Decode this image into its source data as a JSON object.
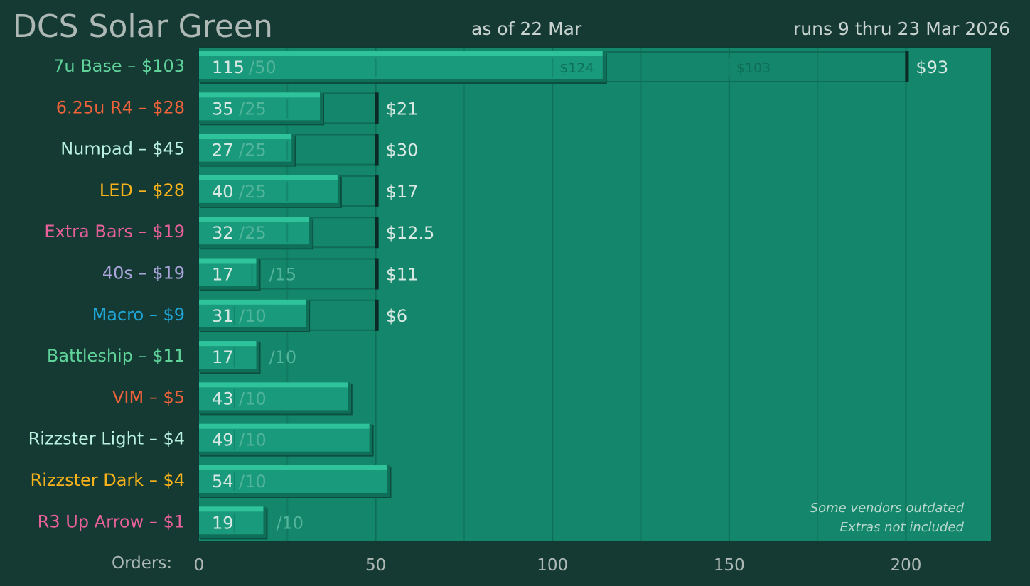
{
  "header": {
    "title": "DCS Solar Green",
    "as_of": "as of 22 Mar",
    "runs": "runs 9 thru 23 Mar 2026"
  },
  "notes": {
    "line1": "Some vendors outdated",
    "line2": "Extras not included"
  },
  "axis": {
    "label": "Orders:"
  },
  "chart_data": {
    "type": "bar",
    "orientation": "horizontal",
    "xlabel": "Orders:",
    "xlim": [
      0,
      225
    ],
    "xticks": [
      0,
      50,
      100,
      150,
      200
    ],
    "grid": true,
    "colors": {
      "bar": "#1a9a7c",
      "bar_top": "#2fc39c",
      "plot_bg": "#13866b",
      "page_bg": "#143a33"
    },
    "categories": [
      "7u Base – $103",
      "6.25u R4 – $28",
      "Numpad – $45",
      "LED – $28",
      "Extra Bars – $19",
      "40s – $19",
      "Macro – $9",
      "Battleship – $11",
      "VIM – $5",
      "Rizzster Light – $4",
      "Rizzster Dark – $4",
      "R3 Up Arrow – $1"
    ],
    "label_colors": [
      "#5fd39a",
      "#f0623a",
      "#b9f0e0",
      "#f7b21b",
      "#e8609a",
      "#a9a4d9",
      "#21a6d8",
      "#5fd39a",
      "#f0623a",
      "#b9f0e0",
      "#f7b21b",
      "#e8609a"
    ],
    "values": [
      115,
      35,
      27,
      40,
      32,
      17,
      31,
      17,
      43,
      49,
      54,
      19
    ],
    "value_labels": [
      "115",
      "35",
      "27",
      "40",
      "32",
      "17",
      "31",
      "17",
      "43",
      "49",
      "54",
      "19"
    ],
    "moq": [
      50,
      25,
      25,
      25,
      25,
      15,
      10,
      10,
      10,
      10,
      10,
      10
    ],
    "moq_labels": [
      "/50",
      "/25",
      "/25",
      "/25",
      "/25",
      "/15",
      "/10",
      "/10",
      "/10",
      "/10",
      "/10",
      "/10"
    ],
    "target": [
      200,
      50,
      50,
      50,
      50,
      50,
      50,
      null,
      null,
      null,
      null,
      null
    ],
    "target_labels": [
      "$93",
      "$21",
      "$30",
      "$17",
      "$12.5",
      "$11",
      "$6",
      "",
      "",
      "",
      "",
      ""
    ],
    "tier_markers": [
      [
        {
          "x": 100,
          "label": "$124"
        },
        {
          "x": 150,
          "label": "$103"
        }
      ],
      [],
      [],
      [],
      [],
      [],
      [],
      [],
      [],
      [],
      [],
      []
    ]
  }
}
